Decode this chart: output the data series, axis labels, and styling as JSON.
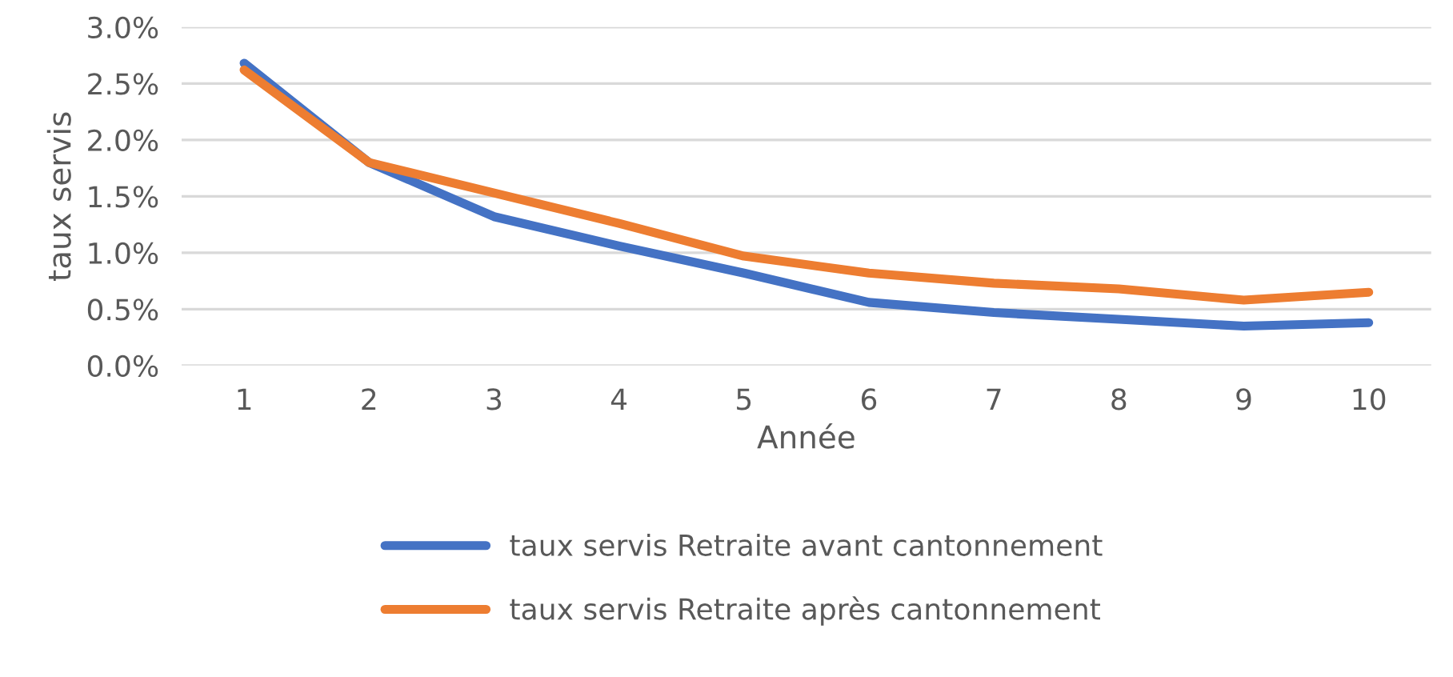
{
  "chart_data": {
    "type": "line",
    "xlabel": "Année",
    "ylabel": "taux servis",
    "categories": [
      "1",
      "2",
      "3",
      "4",
      "5",
      "6",
      "7",
      "8",
      "9",
      "10"
    ],
    "series": [
      {
        "name": "taux servis Retraite avant cantonnement",
        "color": "#4472c4",
        "values": [
          2.68,
          1.8,
          1.32,
          1.06,
          0.82,
          0.56,
          0.47,
          0.41,
          0.35,
          0.38
        ]
      },
      {
        "name": "taux servis Retraite après cantonnement",
        "color": "#ed7d31",
        "values": [
          2.62,
          1.8,
          1.53,
          1.26,
          0.97,
          0.82,
          0.73,
          0.68,
          0.58,
          0.65
        ]
      }
    ],
    "ylim": [
      0,
      3.0
    ],
    "yticks": [
      {
        "value": 0,
        "label": "0.0%"
      },
      {
        "value": 0.5,
        "label": "0.5%"
      },
      {
        "value": 1.0,
        "label": "1.0%"
      },
      {
        "value": 1.5,
        "label": "1.5%"
      },
      {
        "value": 2.0,
        "label": "2.0%"
      },
      {
        "value": 2.5,
        "label": "2.5%"
      },
      {
        "value": 3.0,
        "label": "3.0%"
      }
    ],
    "grid": "y",
    "legend": "bottom",
    "line_style": "solid",
    "marker": "none"
  }
}
